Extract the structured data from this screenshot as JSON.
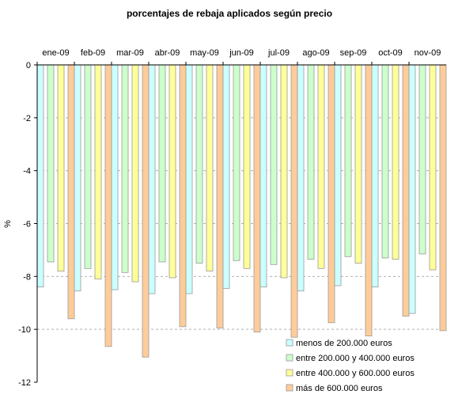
{
  "chart_data": {
    "type": "bar",
    "title": "porcentajes de rebaja aplicados según precio",
    "xlabel": "",
    "ylabel": "%",
    "ylim": [
      -12,
      0
    ],
    "yticks": [
      0,
      -2,
      -4,
      -6,
      -8,
      -10,
      -12
    ],
    "grid": true,
    "x_axis_position": "top",
    "legend_position": "bottom-right",
    "categories": [
      "ene-09",
      "feb-09",
      "mar-09",
      "abr-09",
      "may-09",
      "jun-09",
      "jul-09",
      "ago-09",
      "sep-09",
      "oct-09",
      "nov-09"
    ],
    "series": [
      {
        "name": "menos de 200.000 euros",
        "color": "#ccffff",
        "values": [
          -8.4,
          -8.55,
          -8.5,
          -8.65,
          -8.65,
          -8.45,
          -8.4,
          -8.55,
          -8.35,
          -8.4,
          -9.4
        ]
      },
      {
        "name": "entre 200.000 y 400.000 euros",
        "color": "#ccffcc",
        "values": [
          -7.45,
          -7.7,
          -7.85,
          -7.45,
          -7.5,
          -7.4,
          -7.55,
          -7.35,
          -7.25,
          -7.3,
          -7.15
        ]
      },
      {
        "name": "entre 400.000 y 600.000 euros",
        "color": "#ffff99",
        "values": [
          -7.8,
          -8.1,
          -8.2,
          -8.05,
          -7.8,
          -7.7,
          -8.05,
          -7.7,
          -7.5,
          -7.35,
          -7.75
        ]
      },
      {
        "name": "más de 600.000 euros",
        "color": "#ffcc99",
        "values": [
          -9.6,
          -10.65,
          -11.05,
          -9.9,
          -9.95,
          -10.1,
          -10.3,
          -9.75,
          -10.25,
          -9.5,
          -10.05
        ]
      }
    ]
  }
}
